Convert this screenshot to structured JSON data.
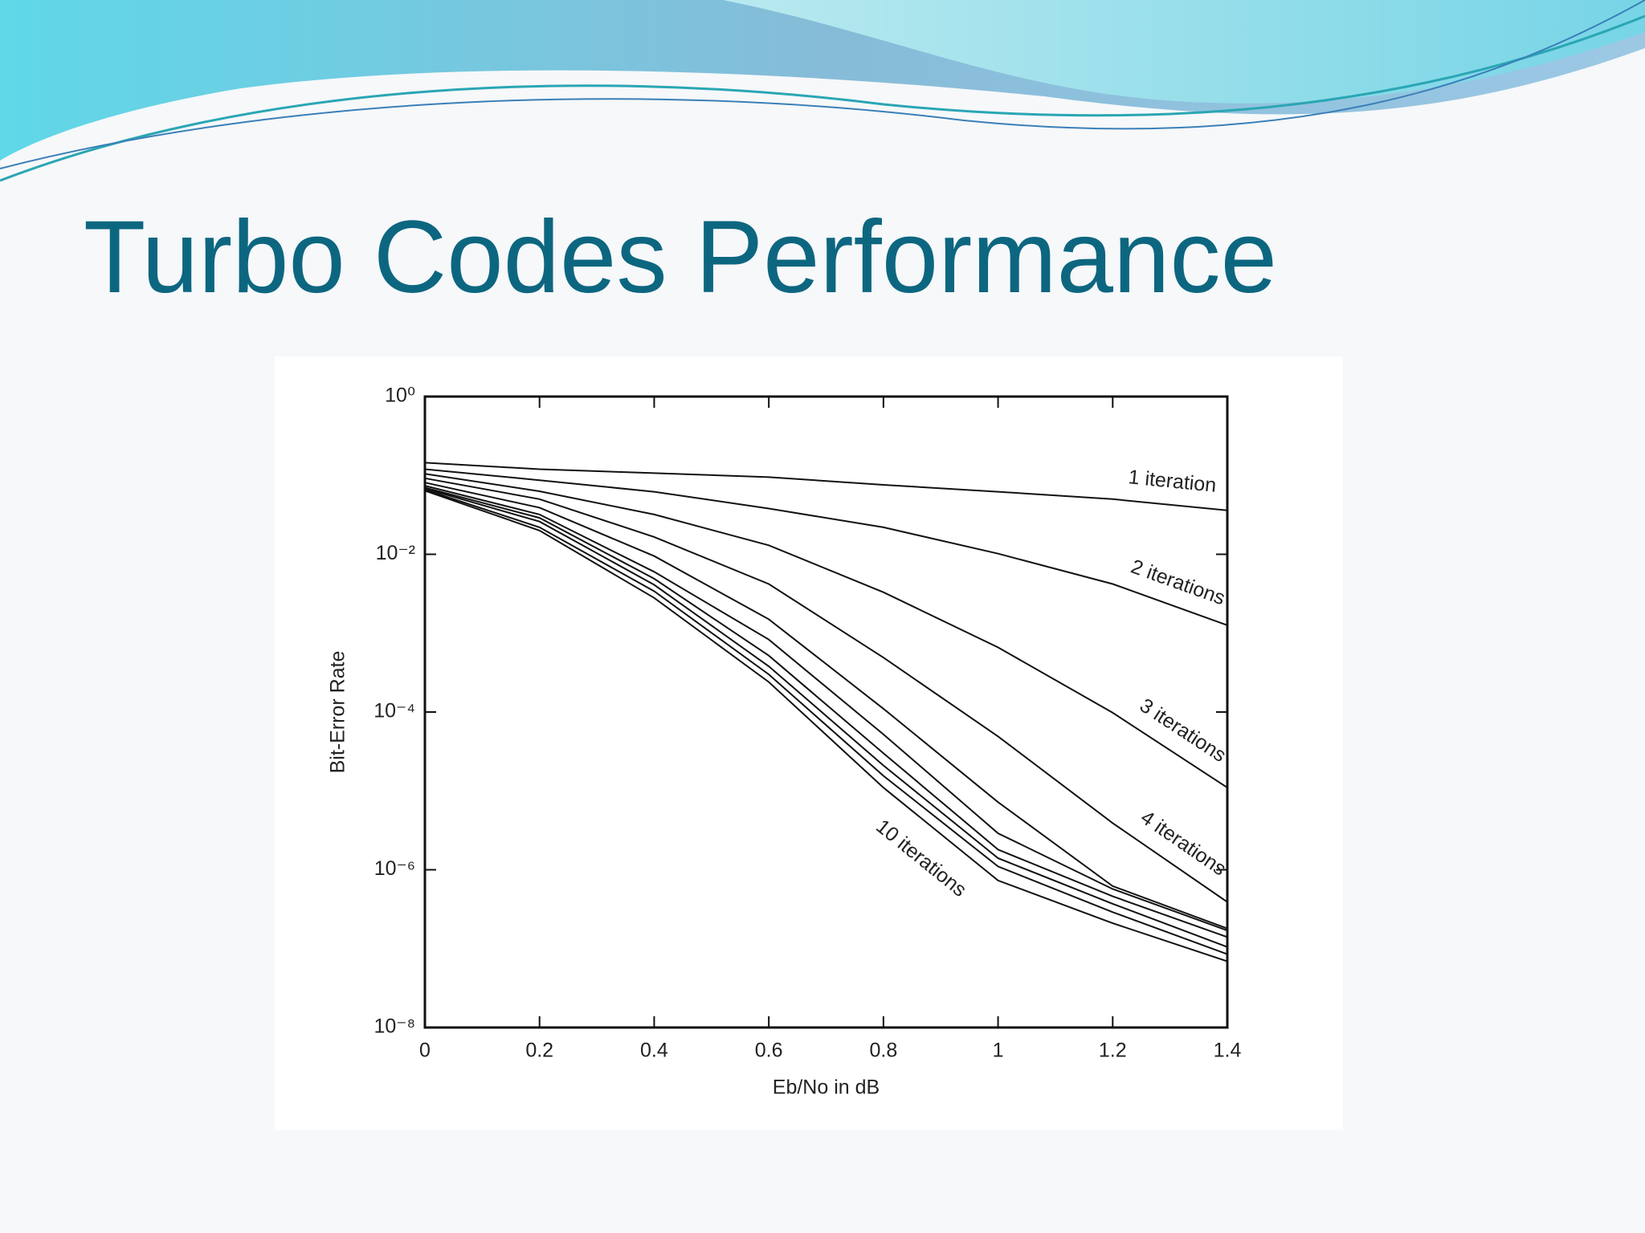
{
  "header": {
    "title": "Turbo Codes Performance"
  },
  "chart_data": {
    "type": "line",
    "yscale": "log",
    "color": "#111111",
    "xlabel": "Eb/No in dB",
    "ylabel": "Bit-Error Rate",
    "x": [
      0,
      0.2,
      0.4,
      0.6,
      0.8,
      1.0,
      1.2,
      1.4
    ],
    "xlim": [
      0,
      1.4
    ],
    "xticks": [
      0,
      0.2,
      0.4,
      0.6,
      0.8,
      1,
      1.2,
      1.4
    ],
    "ylim": [
      1e-08,
      1
    ],
    "yticks": [
      {
        "value": 1e-08,
        "label": "10⁻⁸"
      },
      {
        "value": 1e-06,
        "label": "10⁻⁶"
      },
      {
        "value": 0.0001,
        "label": "10⁻⁴"
      },
      {
        "value": 0.01,
        "label": "10⁻²"
      },
      {
        "value": 1,
        "label": "10⁰"
      }
    ],
    "series": [
      {
        "name": "1 iteration",
        "values": [
          0.145,
          0.12,
          0.107,
          0.095,
          0.076,
          0.062,
          0.05,
          0.036
        ]
      },
      {
        "name": "2 iterations",
        "values": [
          0.12,
          0.087,
          0.062,
          0.038,
          0.022,
          0.0102,
          0.0042,
          0.00126
        ]
      },
      {
        "name": "3 iterations",
        "values": [
          0.105,
          0.063,
          0.032,
          0.013,
          0.0033,
          0.00066,
          9.8e-05,
          1.1e-05
        ]
      },
      {
        "name": "4 iterations",
        "values": [
          0.092,
          0.05,
          0.0166,
          0.0042,
          0.00049,
          4.9e-05,
          3.9e-06,
          3.9e-07
        ]
      },
      {
        "values": [
          0.081,
          0.039,
          0.0095,
          0.0015,
          0.00011,
          7.2e-06,
          6.2e-07,
          1.8e-07
        ]
      },
      {
        "values": [
          0.074,
          0.032,
          0.006,
          0.00083,
          5.2e-05,
          2.9e-06,
          5.7e-07,
          1.7e-07
        ]
      },
      {
        "values": [
          0.07,
          0.029,
          0.0049,
          0.00052,
          3e-05,
          1.8e-06,
          4.6e-07,
          1.4e-07
        ]
      },
      {
        "values": [
          0.068,
          0.026,
          0.0041,
          0.00038,
          2.1e-05,
          1.4e-06,
          3.7e-07,
          1.05e-07
        ]
      },
      {
        "values": [
          0.066,
          0.022,
          0.0034,
          0.0003,
          1.55e-05,
          1.1e-06,
          2.9e-07,
          8.5e-08
        ]
      },
      {
        "name": "10 iterations",
        "values": [
          0.064,
          0.02,
          0.0028,
          0.00024,
          1.1e-05,
          7.3e-07,
          2.1e-07,
          6.9e-08
        ]
      }
    ]
  }
}
